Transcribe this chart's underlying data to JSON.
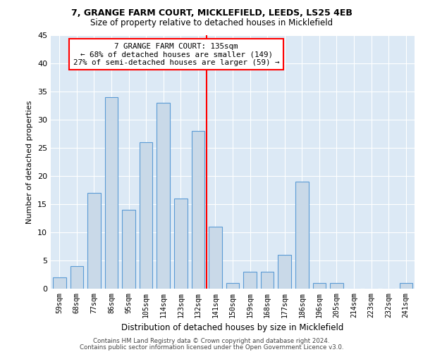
{
  "title1": "7, GRANGE FARM COURT, MICKLEFIELD, LEEDS, LS25 4EB",
  "title2": "Size of property relative to detached houses in Micklefield",
  "xlabel": "Distribution of detached houses by size in Micklefield",
  "ylabel": "Number of detached properties",
  "footer1": "Contains HM Land Registry data © Crown copyright and database right 2024.",
  "footer2": "Contains public sector information licensed under the Open Government Licence v3.0.",
  "categories": [
    "59sqm",
    "68sqm",
    "77sqm",
    "86sqm",
    "95sqm",
    "105sqm",
    "114sqm",
    "123sqm",
    "132sqm",
    "141sqm",
    "150sqm",
    "159sqm",
    "168sqm",
    "177sqm",
    "186sqm",
    "196sqm",
    "205sqm",
    "214sqm",
    "223sqm",
    "232sqm",
    "241sqm"
  ],
  "values": [
    2,
    4,
    17,
    34,
    14,
    26,
    33,
    16,
    28,
    11,
    1,
    3,
    3,
    6,
    19,
    1,
    1,
    0,
    0,
    0,
    1
  ],
  "bar_color": "#c9d9e8",
  "bar_edge_color": "#5b9bd5",
  "vline_pos": 8.5,
  "annotation_title": "7 GRANGE FARM COURT: 135sqm",
  "annotation_line2": "← 68% of detached houses are smaller (149)",
  "annotation_line3": "27% of semi-detached houses are larger (59) →",
  "ylim": [
    0,
    45
  ],
  "yticks": [
    0,
    5,
    10,
    15,
    20,
    25,
    30,
    35,
    40,
    45
  ],
  "bg_outer": "#ffffff",
  "bg_plot": "#dce9f5",
  "grid_color": "#ffffff"
}
